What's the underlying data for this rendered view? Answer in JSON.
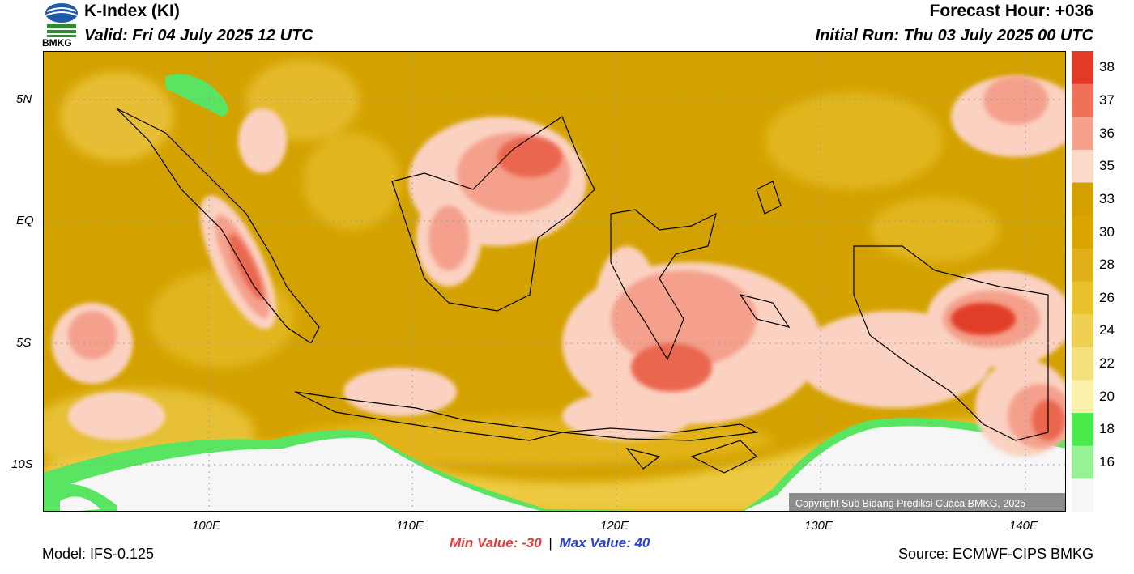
{
  "header": {
    "title": "K-Index (KI)",
    "valid": "Valid: Fri 04 July 2025 12 UTC",
    "forecast_hour": "Forecast Hour: +036",
    "initial_run": "Initial Run: Thu 03 July 2025 00 UTC",
    "logo_text": "BMKG"
  },
  "map": {
    "lat_labels": [
      "5N",
      "EQ",
      "5S",
      "10S"
    ],
    "lon_labels": [
      "100E",
      "110E",
      "120E",
      "130E",
      "140E"
    ],
    "copyright": "Copyright Sub Bidang Prediksi Cuaca BMKG, 2025",
    "colors": {
      "base": "#d4a200",
      "light": "#e6bd10",
      "warm": "#f1cc42",
      "pink": "#fbd2c2",
      "salmon": "#f4a08c",
      "red": "#ea6650",
      "deep_red": "#e23c28",
      "green": "#59e461",
      "light_green": "#9ef29c",
      "land_empty": "#f6f6f6"
    }
  },
  "colorbar": {
    "labels": [
      "38",
      "37",
      "36",
      "35",
      "33",
      "30",
      "28",
      "26",
      "24",
      "22",
      "20",
      "18",
      "16"
    ],
    "colors": [
      "#e33a25",
      "#f0705a",
      "#f6a18e",
      "#fdd9c9",
      "#d4a000",
      "#dba400",
      "#e1b019",
      "#e8c12c",
      "#efd052",
      "#f6e07e",
      "#fbf1aa",
      "#4bea4b",
      "#95f394",
      "#f6f6f6"
    ]
  },
  "footer": {
    "min_label": "Min Value: -30",
    "separator": "|",
    "max_label": "Max Value:  40",
    "model": "Model: IFS-0.125",
    "source": "Source: ECMWF-CIPS BMKG"
  }
}
